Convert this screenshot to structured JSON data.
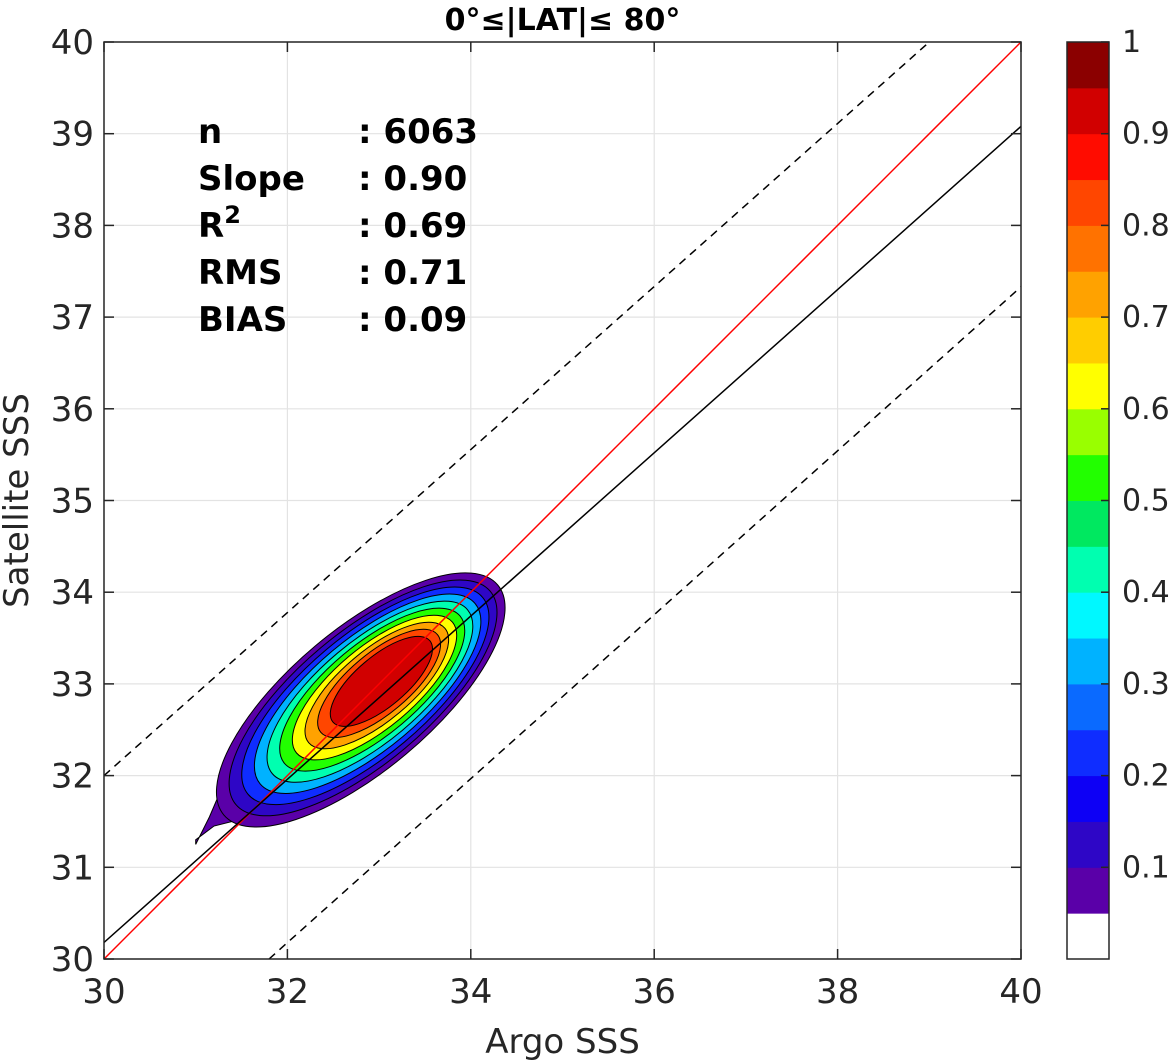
{
  "chart_data": {
    "type": "contour",
    "title": "0°≤|LAT|≤ 80°",
    "xlabel": "Argo SSS",
    "ylabel": "Satellite SSS",
    "xlim": [
      30,
      40
    ],
    "ylim": [
      30,
      40
    ],
    "xticks": [
      "30",
      "32",
      "34",
      "36",
      "38",
      "40"
    ],
    "yticks": [
      "30",
      "31",
      "32",
      "33",
      "34",
      "35",
      "36",
      "37",
      "38",
      "39",
      "40"
    ],
    "grid": true,
    "stats": [
      {
        "name": "n",
        "sep": ": ",
        "value": "6063"
      },
      {
        "name": "Slope",
        "sep": ": ",
        "value": "0.90"
      },
      {
        "name": "R",
        "sup": "2",
        "sep": ": ",
        "value": "0.69"
      },
      {
        "name": "RMS",
        "sep": ": ",
        "value": "0.71"
      },
      {
        "name": "BIAS",
        "sep": ": ",
        "value": "0.09"
      }
    ],
    "lines": [
      {
        "id": "one-to-one",
        "color": "#ff0000",
        "dash": false,
        "points": [
          [
            30,
            30
          ],
          [
            40,
            40
          ]
        ]
      },
      {
        "id": "regression",
        "color": "#000000",
        "dash": false,
        "points": [
          [
            30,
            30.18
          ],
          [
            40,
            39.08
          ]
        ]
      },
      {
        "id": "upper-bound",
        "color": "#000000",
        "dash": true,
        "points": [
          [
            30,
            32.0
          ],
          [
            39.0,
            40.0
          ]
        ]
      },
      {
        "id": "lower-bound",
        "color": "#000000",
        "dash": true,
        "points": [
          [
            31.8,
            30.0
          ],
          [
            40.0,
            37.33
          ]
        ]
      }
    ],
    "density_peak": {
      "x": 33.05,
      "y": 33.05
    },
    "contour_levels": [
      0.05,
      0.1,
      0.2,
      0.3,
      0.4,
      0.5,
      0.6,
      0.7,
      0.8,
      0.9
    ],
    "colorbar": {
      "range": [
        0,
        1
      ],
      "ticks": [
        "0.1",
        "0.2",
        "0.3",
        "0.4",
        "0.5",
        "0.6",
        "0.7",
        "0.8",
        "0.9",
        "1"
      ],
      "colors": [
        "#ffffff",
        "#5a00a8",
        "#2e06c6",
        "#0d00f5",
        "#0f2dff",
        "#0a6aff",
        "#00b2ff",
        "#00f8ff",
        "#00ffb0",
        "#00e860",
        "#22ff00",
        "#99ff00",
        "#ffff00",
        "#ffcd00",
        "#ffa200",
        "#ff7200",
        "#ff4600",
        "#ff0c00",
        "#d10000",
        "#8b0000"
      ]
    }
  }
}
